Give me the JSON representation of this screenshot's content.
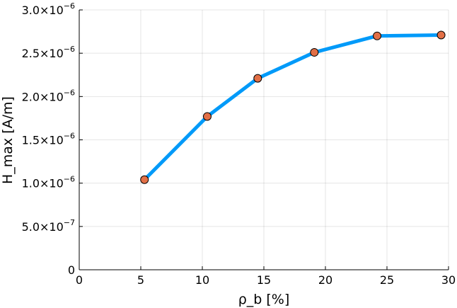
{
  "chart_data": {
    "type": "line",
    "title": "",
    "xlabel": "ρ_b [%]",
    "ylabel": "H_max [A/m]",
    "xlim": [
      0,
      30
    ],
    "ylim": [
      0,
      3e-06
    ],
    "x_ticks": [
      0,
      5,
      10,
      15,
      20,
      25,
      30
    ],
    "x_tick_labels": [
      "0",
      "5",
      "10",
      "15",
      "20",
      "25",
      "30"
    ],
    "y_ticks": [
      0,
      5e-07,
      1e-06,
      1.5e-06,
      2e-06,
      2.5e-06,
      3e-06
    ],
    "y_tick_labels": [
      {
        "mantissa": "0",
        "exponent": ""
      },
      {
        "mantissa": "5.0×10",
        "exponent": "−7"
      },
      {
        "mantissa": "1.0×10",
        "exponent": "−6"
      },
      {
        "mantissa": "1.5×10",
        "exponent": "−6"
      },
      {
        "mantissa": "2.0×10",
        "exponent": "−6"
      },
      {
        "mantissa": "2.5×10",
        "exponent": "−6"
      },
      {
        "mantissa": "3.0×10",
        "exponent": "−6"
      }
    ],
    "grid": true,
    "legend": "none",
    "series": [
      {
        "x": [
          5.3,
          10.4,
          14.5,
          19.1,
          24.2,
          29.4
        ],
        "y": [
          1.04e-06,
          1.77e-06,
          2.21e-06,
          2.51e-06,
          2.7e-06,
          2.71e-06
        ],
        "line_color": "#009af9",
        "marker_color": "#e26f46"
      }
    ]
  }
}
